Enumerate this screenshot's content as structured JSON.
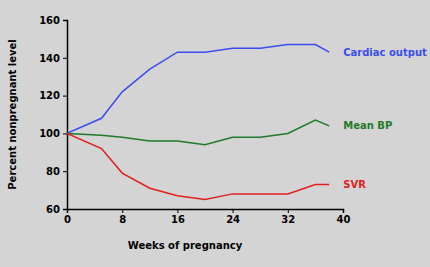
{
  "chart_data": {
    "type": "line",
    "x_label": "Weeks of pregnancy",
    "y_label": "Percent nonpregnant level",
    "x": [
      0,
      5,
      8,
      12,
      16,
      20,
      24,
      28,
      32,
      36,
      38
    ],
    "xlim": [
      0,
      40
    ],
    "xticks": [
      0,
      8,
      16,
      24,
      32,
      40
    ],
    "ylim": [
      60,
      160
    ],
    "yticks": [
      60,
      80,
      100,
      120,
      140,
      160
    ],
    "grid": false,
    "series": [
      {
        "name": "Cardiac output",
        "color": "#3a4cf0",
        "values": [
          100,
          108,
          122,
          134,
          143,
          143,
          145,
          145,
          147,
          147,
          143
        ]
      },
      {
        "name": "Mean BP",
        "color": "#1f7a2a",
        "values": [
          100,
          99,
          98,
          96,
          96,
          94,
          98,
          98,
          100,
          107,
          104
        ]
      },
      {
        "name": "SVR",
        "color": "#e0201c",
        "values": [
          100,
          92,
          79,
          71,
          67,
          65,
          68,
          68,
          68,
          73,
          73
        ]
      }
    ]
  }
}
